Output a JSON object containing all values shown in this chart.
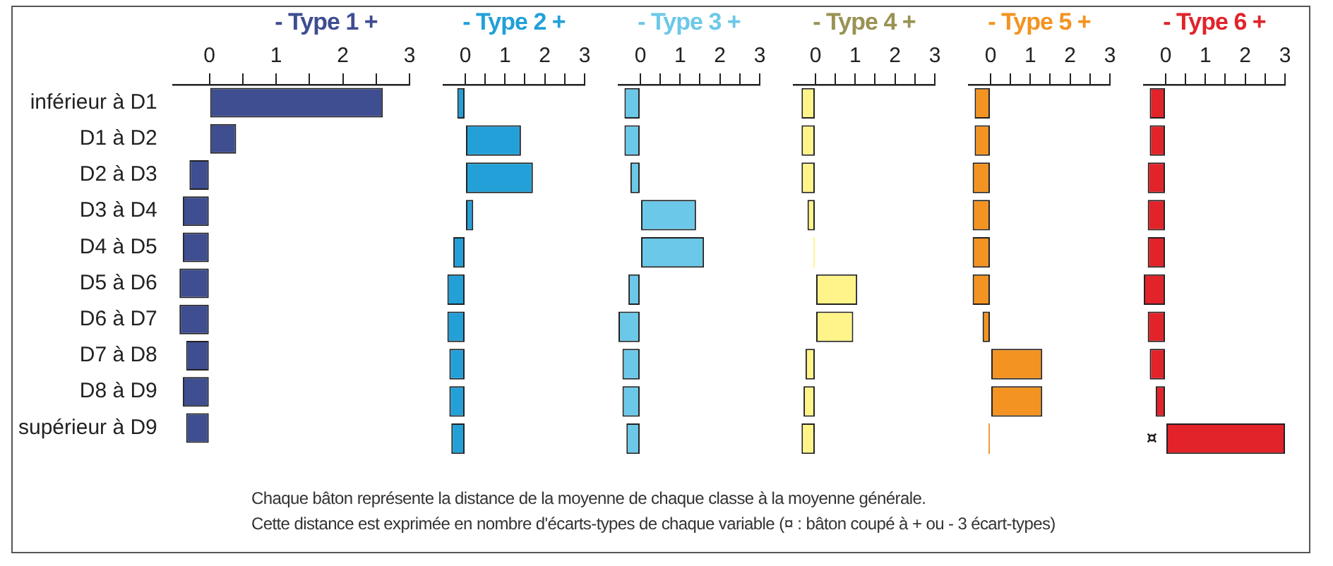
{
  "chart_data": [
    {
      "type": "bar",
      "orientation": "horizontal",
      "title": "- Type 1 +",
      "categories": [
        "inférieur à D1",
        "D1 à D2",
        "D2 à D3",
        "D3 à D4",
        "D4 à D5",
        "D5 à D6",
        "D6 à D7",
        "D7 à D8",
        "D8 à D9",
        "supérieur à D9"
      ],
      "values": [
        2.6,
        0.4,
        -0.3,
        -0.4,
        -0.4,
        -0.45,
        -0.45,
        -0.35,
        -0.4,
        -0.35
      ],
      "color": "#3f4d91",
      "xlim": [
        -0.55,
        3
      ],
      "xticks": [
        0,
        {
          "value": 0.5,
          "label": null
        },
        1,
        {
          "value": 1.5,
          "label": null
        },
        2,
        {
          "value": 2.5,
          "label": null
        },
        3
      ],
      "grid": false,
      "annotations": [
        "Chaque bâton représente la distance de la moyenne de chaque classe à la moyenne générale.",
        "Cette distance est exprimée en nombre d'écarts-types de chaque variable (¤ : bâton coupé à + ou - 3 écart-types)"
      ]
    },
    {
      "type": "bar",
      "orientation": "horizontal",
      "title": "- Type 2 +",
      "categories": [
        "inférieur à D1",
        "D1 à D2",
        "D2 à D3",
        "D3 à D4",
        "D4 à D5",
        "D5 à D6",
        "D6 à D7",
        "D7 à D8",
        "D8 à D9",
        "supérieur à D9"
      ],
      "values": [
        -0.2,
        1.4,
        1.7,
        0.2,
        -0.3,
        -0.45,
        -0.45,
        -0.4,
        -0.4,
        -0.35
      ],
      "color": "#23a0d8",
      "xlim": [
        -0.55,
        3
      ],
      "xticks": [
        0,
        {
          "value": 0.5,
          "label": null
        },
        1,
        {
          "value": 1.5,
          "label": null
        },
        2,
        {
          "value": 2.5,
          "label": null
        },
        3
      ],
      "grid": false,
      "tick_labels": "x"
    },
    {
      "type": "bar",
      "orientation": "horizontal",
      "title": "- Type 3 +",
      "categories": [
        "inférieur à D1",
        "D1 à D2",
        "D2 à D3",
        "D3 à D4",
        "D4 à D5",
        "D5 à D6",
        "D6 à D7",
        "D7 à D8",
        "D8 à D9",
        "supérieur à D9"
      ],
      "values": [
        -0.4,
        -0.4,
        -0.25,
        1.4,
        1.6,
        -0.3,
        -0.55,
        -0.45,
        -0.45,
        -0.35
      ],
      "color": "#6cc8e8",
      "xlim": [
        -0.55,
        3
      ],
      "xticks": [
        0,
        {
          "value": 0.5,
          "label": null
        },
        1,
        {
          "value": 1.5,
          "label": null
        },
        2,
        {
          "value": 2.5,
          "label": null
        },
        3
      ],
      "grid": false,
      "tick_labels": "x"
    },
    {
      "type": "bar",
      "orientation": "horizontal",
      "title": "- Type 4 +",
      "categories": [
        "inférieur à D1",
        "D1 à D2",
        "D2 à D3",
        "D3 à D4",
        "D4 à D5",
        "D5 à D6",
        "D6 à D7",
        "D7 à D8",
        "D8 à D9",
        "supérieur à D9"
      ],
      "values": [
        -0.35,
        -0.35,
        -0.35,
        -0.2,
        -0.05,
        1.05,
        0.95,
        -0.25,
        -0.3,
        -0.35
      ],
      "color": "#fff48a",
      "xlim": [
        -0.55,
        3
      ],
      "xticks": [
        0,
        {
          "value": 0.5,
          "label": null
        },
        1,
        {
          "value": 1.5,
          "label": null
        },
        2,
        {
          "value": 2.5,
          "label": null
        },
        3
      ],
      "grid": false,
      "tick_labels": "x"
    },
    {
      "type": "bar",
      "orientation": "horizontal",
      "title": "- Type 5 +",
      "categories": [
        "inférieur à D1",
        "D1 à D2",
        "D2 à D3",
        "D3 à D4",
        "D4 à D5",
        "D5 à D6",
        "D6 à D7",
        "D7 à D8",
        "D8 à D9",
        "supérieur à D9"
      ],
      "values": [
        -0.4,
        -0.4,
        -0.45,
        -0.45,
        -0.45,
        -0.45,
        -0.2,
        1.3,
        1.3,
        -0.05
      ],
      "color": "#f39322",
      "xlim": [
        -0.55,
        3
      ],
      "xticks": [
        0,
        {
          "value": 0.5,
          "label": null
        },
        1,
        {
          "value": 1.5,
          "label": null
        },
        2,
        {
          "value": 2.5,
          "label": null
        },
        3
      ],
      "grid": false,
      "tick_labels": "x"
    },
    {
      "type": "bar",
      "orientation": "horizontal",
      "title": "- Type 6 +",
      "categories": [
        "inférieur à D1",
        "D1 à D2",
        "D2 à D3",
        "D3 à D4",
        "D4 à D5",
        "D5 à D6",
        "D6 à D7",
        "D7 à D8",
        "D8 à D9",
        "supérieur à D9"
      ],
      "values": [
        -0.4,
        -0.4,
        -0.45,
        -0.45,
        -0.45,
        -0.55,
        -0.45,
        -0.4,
        -0.25,
        3
      ],
      "color": "#e2232a",
      "xlim": [
        -0.55,
        3
      ],
      "xticks": [
        0,
        {
          "value": 0.5,
          "label": null
        },
        1,
        {
          "value": 1.5,
          "label": null
        },
        2,
        {
          "value": 2.5,
          "label": null
        },
        3
      ],
      "grid": false,
      "tick_labels": "x",
      "annotations": [
        {
          "text": "¤",
          "x": 0,
          "y": "supérieur à D9"
        }
      ]
    }
  ]
}
